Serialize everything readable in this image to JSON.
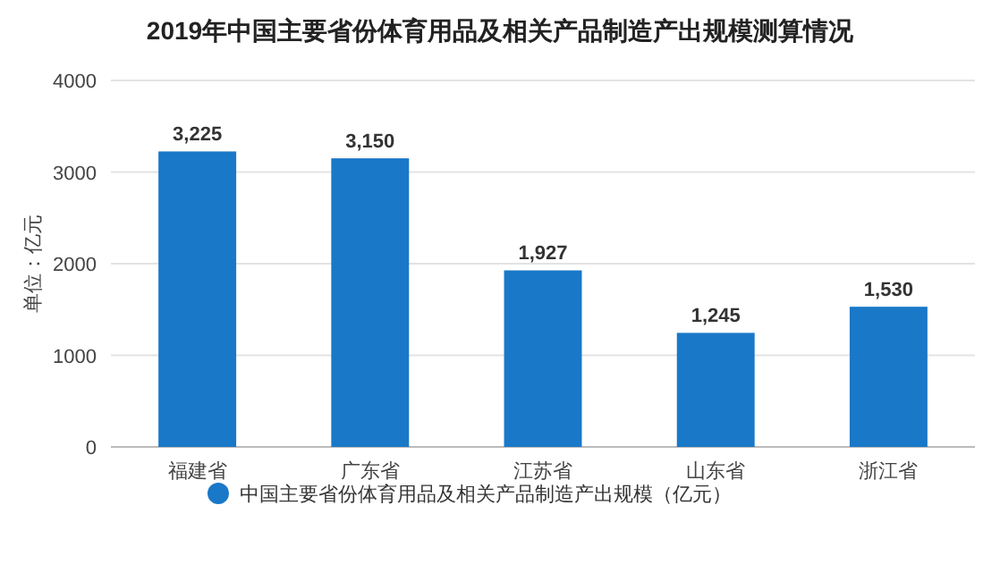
{
  "chart_data": {
    "type": "bar",
    "title": "2019年中国主要省份体育用品及相关产品制造产出规模测算情况",
    "ylabel": "单位：亿元",
    "categories": [
      "福建省",
      "广东省",
      "江苏省",
      "山东省",
      "浙江省"
    ],
    "series": [
      {
        "name": "中国主要省份体育用品及相关产品制造产出规模（亿元）",
        "color": "#1a78c8",
        "values": [
          3225,
          3150,
          1927,
          1245,
          1530
        ],
        "value_labels": [
          "3,225",
          "3,150",
          "1,927",
          "1,245",
          "1,530"
        ]
      }
    ],
    "ylim": [
      0,
      4000
    ],
    "yticks": [
      0,
      1000,
      2000,
      3000,
      4000
    ],
    "grid": "y",
    "legend": "bottom"
  }
}
